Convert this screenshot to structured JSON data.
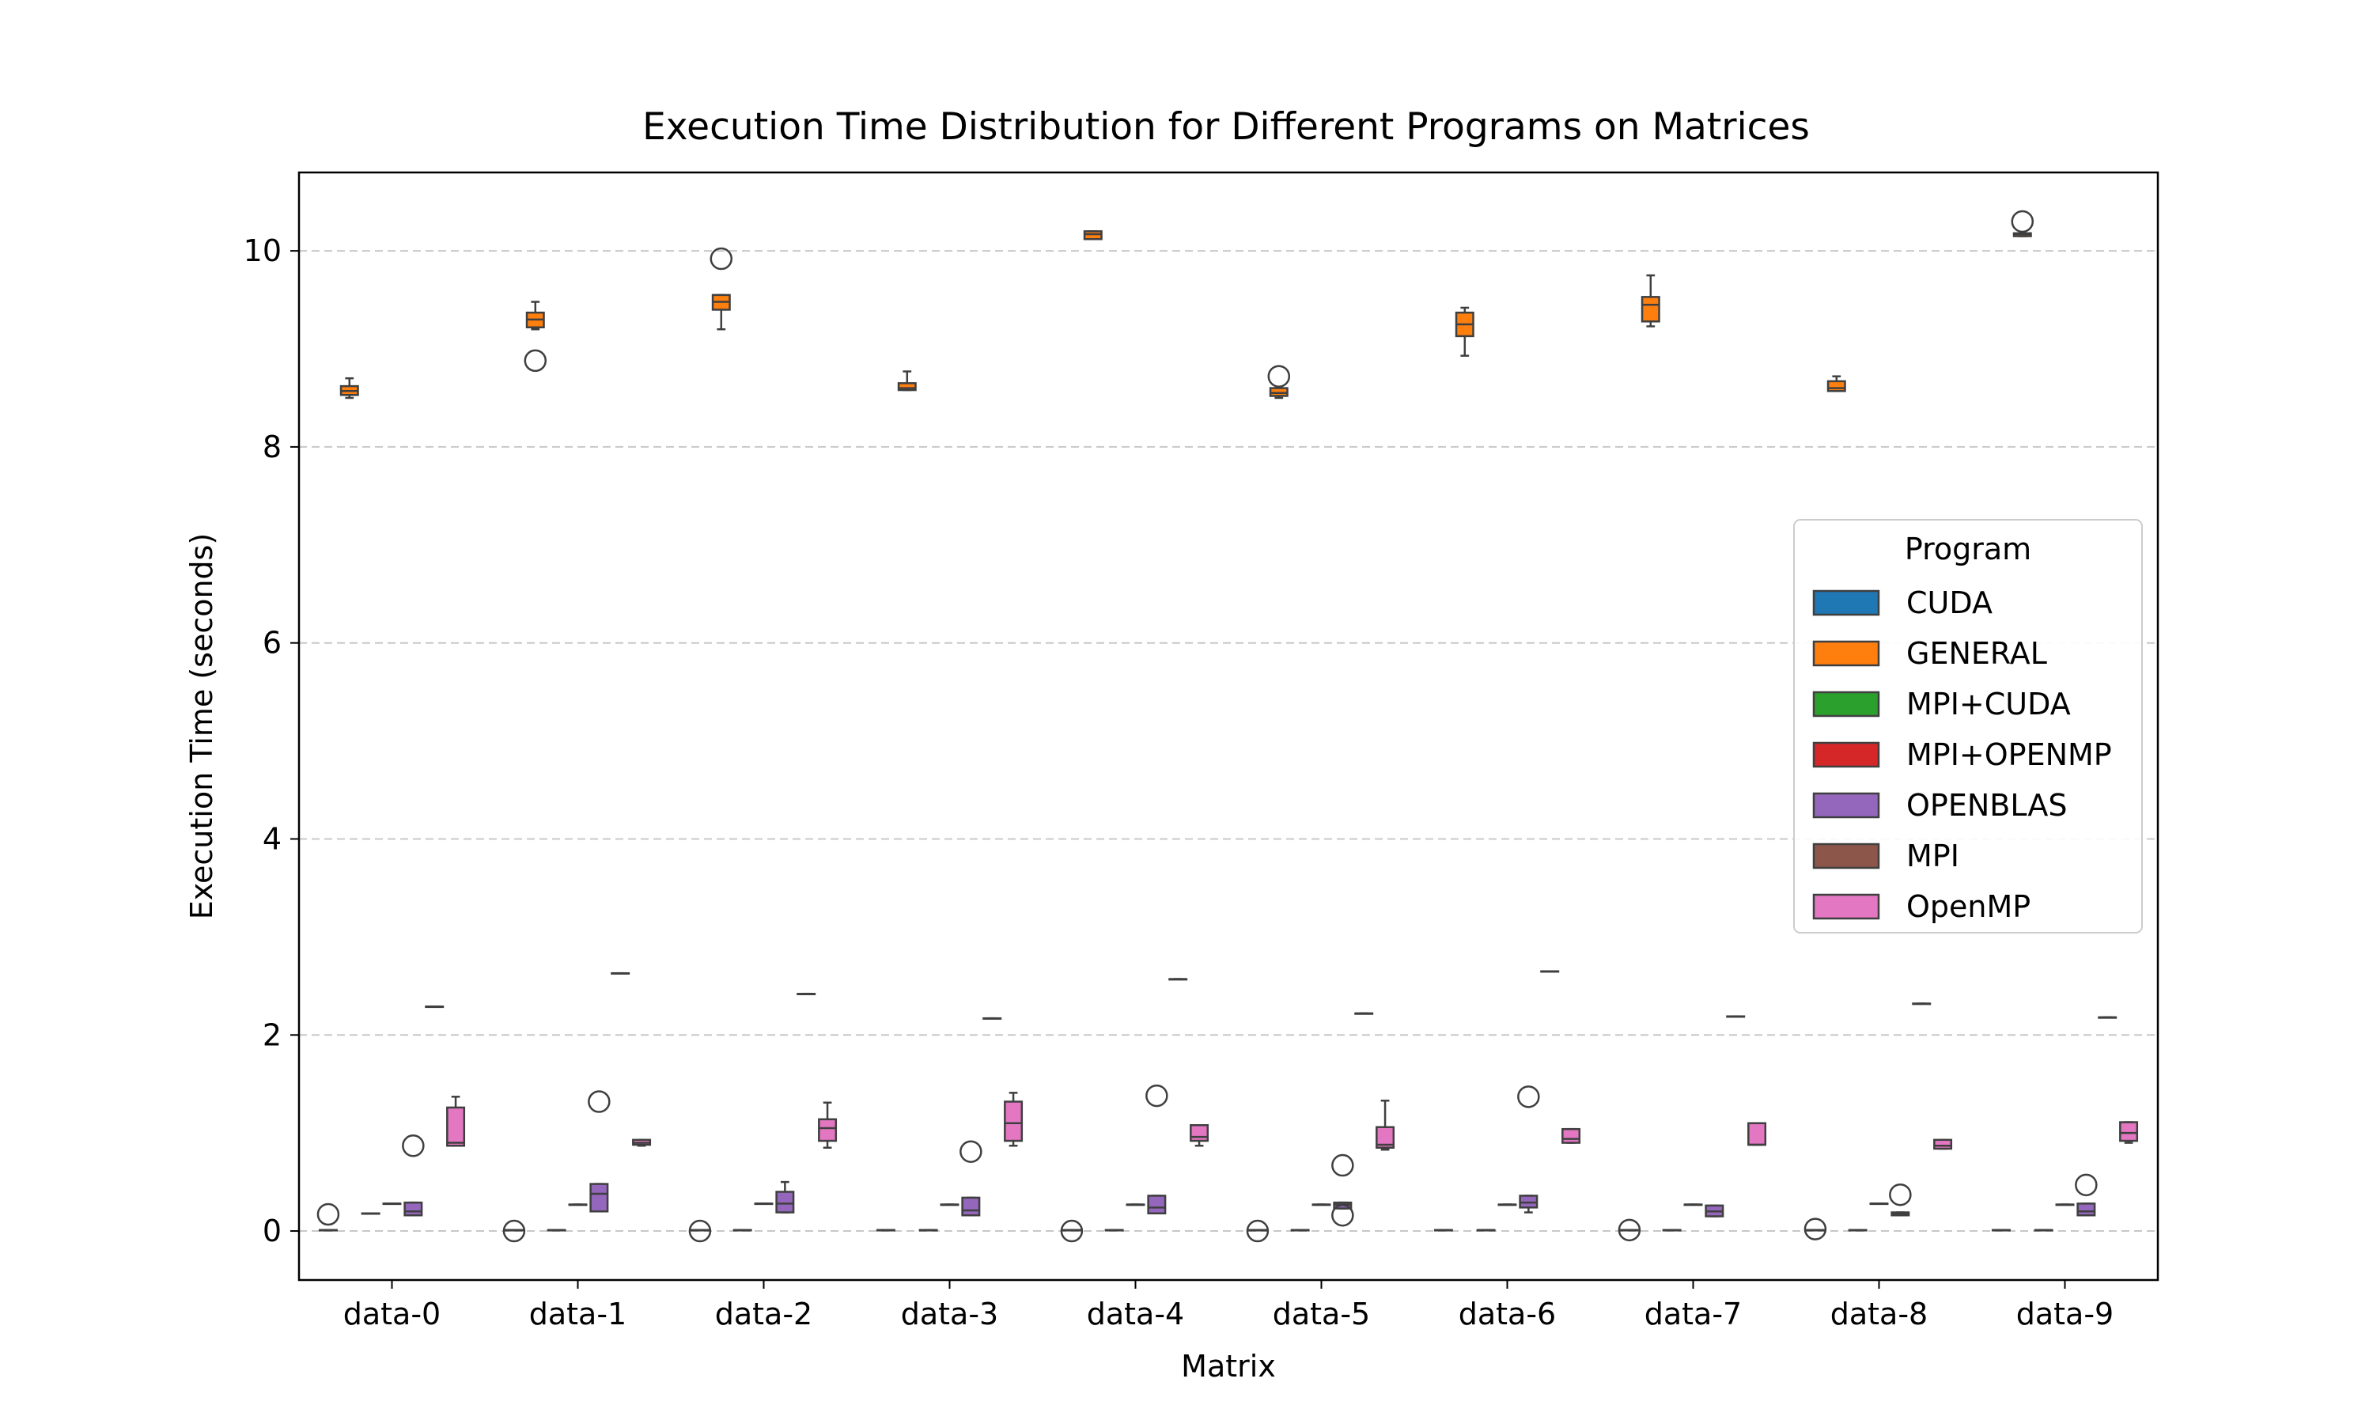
{
  "chart_data": {
    "type": "box",
    "title": "Execution Time Distribution for Different Programs on Matrices",
    "xlabel": "Matrix",
    "ylabel": "Execution Time (seconds)",
    "ylim": [
      -0.5,
      10.8
    ],
    "yticks": [
      0,
      2,
      4,
      6,
      8,
      10
    ],
    "grid": "y-dashed",
    "categories": [
      "data-0",
      "data-1",
      "data-2",
      "data-3",
      "data-4",
      "data-5",
      "data-6",
      "data-7",
      "data-8",
      "data-9"
    ],
    "legend": {
      "title": "Program",
      "placement": "center-right"
    },
    "series": [
      {
        "name": "CUDA",
        "color": "#1f77b4",
        "boxes": [
          {
            "whislo": 0.01,
            "q1": 0.01,
            "med": 0.01,
            "q3": 0.01,
            "whishi": 0.01,
            "fliers": [
              0.17
            ]
          },
          {
            "whislo": 0.01,
            "q1": 0.01,
            "med": 0.01,
            "q3": 0.01,
            "whishi": 0.01,
            "fliers": [
              0.0
            ]
          },
          {
            "whislo": 0.01,
            "q1": 0.01,
            "med": 0.01,
            "q3": 0.01,
            "whishi": 0.01,
            "fliers": [
              0.0
            ]
          },
          {
            "whislo": 0.01,
            "q1": 0.01,
            "med": 0.01,
            "q3": 0.01,
            "whishi": 0.01,
            "fliers": []
          },
          {
            "whislo": 0.01,
            "q1": 0.01,
            "med": 0.01,
            "q3": 0.01,
            "whishi": 0.01,
            "fliers": [
              0.0
            ]
          },
          {
            "whislo": 0.01,
            "q1": 0.01,
            "med": 0.01,
            "q3": 0.01,
            "whishi": 0.01,
            "fliers": [
              0.0
            ]
          },
          {
            "whislo": 0.01,
            "q1": 0.01,
            "med": 0.01,
            "q3": 0.01,
            "whishi": 0.01,
            "fliers": []
          },
          {
            "whislo": 0.01,
            "q1": 0.01,
            "med": 0.01,
            "q3": 0.01,
            "whishi": 0.01,
            "fliers": [
              0.01
            ]
          },
          {
            "whislo": 0.01,
            "q1": 0.01,
            "med": 0.01,
            "q3": 0.01,
            "whishi": 0.01,
            "fliers": [
              0.02
            ]
          },
          {
            "whislo": 0.01,
            "q1": 0.01,
            "med": 0.01,
            "q3": 0.01,
            "whishi": 0.01,
            "fliers": []
          }
        ]
      },
      {
        "name": "GENERAL",
        "color": "#ff7f0e",
        "boxes": [
          {
            "whislo": 8.5,
            "q1": 8.53,
            "med": 8.57,
            "q3": 8.62,
            "whishi": 8.7,
            "fliers": []
          },
          {
            "whislo": 9.2,
            "q1": 9.22,
            "med": 9.3,
            "q3": 9.37,
            "whishi": 9.48,
            "fliers": [
              8.88
            ]
          },
          {
            "whislo": 9.2,
            "q1": 9.4,
            "med": 9.48,
            "q3": 9.55,
            "whishi": 9.55,
            "fliers": [
              9.92
            ]
          },
          {
            "whislo": 8.58,
            "q1": 8.58,
            "med": 8.6,
            "q3": 8.65,
            "whishi": 8.77,
            "fliers": []
          },
          {
            "whislo": 10.12,
            "q1": 10.12,
            "med": 10.17,
            "q3": 10.2,
            "whishi": 10.2,
            "fliers": []
          },
          {
            "whislo": 8.5,
            "q1": 8.52,
            "med": 8.55,
            "q3": 8.6,
            "whishi": 8.6,
            "fliers": [
              8.72
            ]
          },
          {
            "whislo": 8.93,
            "q1": 9.13,
            "med": 9.25,
            "q3": 9.37,
            "whishi": 9.42,
            "fliers": []
          },
          {
            "whislo": 9.23,
            "q1": 9.28,
            "med": 9.45,
            "q3": 9.53,
            "whishi": 9.75,
            "fliers": []
          },
          {
            "whislo": 8.57,
            "q1": 8.57,
            "med": 8.6,
            "q3": 8.67,
            "whishi": 8.72,
            "fliers": []
          },
          {
            "whislo": 10.15,
            "q1": 10.15,
            "med": 10.17,
            "q3": 10.18,
            "whishi": 10.18,
            "fliers": [
              10.3
            ]
          }
        ]
      },
      {
        "name": "MPI+CUDA",
        "color": "#2ca02c",
        "boxes": [
          {
            "whislo": 0.18,
            "q1": 0.18,
            "med": 0.18,
            "q3": 0.18,
            "whishi": 0.18,
            "fliers": []
          },
          {
            "whislo": 0.01,
            "q1": 0.01,
            "med": 0.01,
            "q3": 0.01,
            "whishi": 0.01,
            "fliers": []
          },
          {
            "whislo": 0.01,
            "q1": 0.01,
            "med": 0.01,
            "q3": 0.01,
            "whishi": 0.01,
            "fliers": []
          },
          {
            "whislo": 0.01,
            "q1": 0.01,
            "med": 0.01,
            "q3": 0.01,
            "whishi": 0.01,
            "fliers": []
          },
          {
            "whislo": 0.01,
            "q1": 0.01,
            "med": 0.01,
            "q3": 0.01,
            "whishi": 0.01,
            "fliers": []
          },
          {
            "whislo": 0.01,
            "q1": 0.01,
            "med": 0.01,
            "q3": 0.01,
            "whishi": 0.01,
            "fliers": []
          },
          {
            "whislo": 0.01,
            "q1": 0.01,
            "med": 0.01,
            "q3": 0.01,
            "whishi": 0.01,
            "fliers": []
          },
          {
            "whislo": 0.01,
            "q1": 0.01,
            "med": 0.01,
            "q3": 0.01,
            "whishi": 0.01,
            "fliers": []
          },
          {
            "whislo": 0.01,
            "q1": 0.01,
            "med": 0.01,
            "q3": 0.01,
            "whishi": 0.01,
            "fliers": []
          },
          {
            "whislo": 0.01,
            "q1": 0.01,
            "med": 0.01,
            "q3": 0.01,
            "whishi": 0.01,
            "fliers": []
          }
        ]
      },
      {
        "name": "MPI+OPENMP",
        "color": "#d62728",
        "boxes": [
          {
            "whislo": 0.28,
            "q1": 0.28,
            "med": 0.28,
            "q3": 0.28,
            "whishi": 0.28,
            "fliers": []
          },
          {
            "whislo": 0.27,
            "q1": 0.27,
            "med": 0.27,
            "q3": 0.27,
            "whishi": 0.27,
            "fliers": []
          },
          {
            "whislo": 0.28,
            "q1": 0.28,
            "med": 0.28,
            "q3": 0.28,
            "whishi": 0.28,
            "fliers": []
          },
          {
            "whislo": 0.27,
            "q1": 0.27,
            "med": 0.27,
            "q3": 0.27,
            "whishi": 0.27,
            "fliers": []
          },
          {
            "whislo": 0.27,
            "q1": 0.27,
            "med": 0.27,
            "q3": 0.27,
            "whishi": 0.27,
            "fliers": []
          },
          {
            "whislo": 0.27,
            "q1": 0.27,
            "med": 0.27,
            "q3": 0.27,
            "whishi": 0.27,
            "fliers": []
          },
          {
            "whislo": 0.27,
            "q1": 0.27,
            "med": 0.27,
            "q3": 0.27,
            "whishi": 0.27,
            "fliers": []
          },
          {
            "whislo": 0.27,
            "q1": 0.27,
            "med": 0.27,
            "q3": 0.27,
            "whishi": 0.27,
            "fliers": []
          },
          {
            "whislo": 0.28,
            "q1": 0.28,
            "med": 0.28,
            "q3": 0.28,
            "whishi": 0.28,
            "fliers": []
          },
          {
            "whislo": 0.27,
            "q1": 0.27,
            "med": 0.27,
            "q3": 0.27,
            "whishi": 0.27,
            "fliers": []
          }
        ]
      },
      {
        "name": "OPENBLAS",
        "color": "#9467bd",
        "boxes": [
          {
            "whislo": 0.16,
            "q1": 0.16,
            "med": 0.2,
            "q3": 0.29,
            "whishi": 0.29,
            "fliers": [
              0.87
            ]
          },
          {
            "whislo": 0.2,
            "q1": 0.2,
            "med": 0.38,
            "q3": 0.48,
            "whishi": 0.48,
            "fliers": [
              1.32
            ]
          },
          {
            "whislo": 0.19,
            "q1": 0.19,
            "med": 0.28,
            "q3": 0.4,
            "whishi": 0.5,
            "fliers": []
          },
          {
            "whislo": 0.16,
            "q1": 0.16,
            "med": 0.21,
            "q3": 0.34,
            "whishi": 0.34,
            "fliers": [
              0.81
            ]
          },
          {
            "whislo": 0.18,
            "q1": 0.18,
            "med": 0.24,
            "q3": 0.36,
            "whishi": 0.36,
            "fliers": [
              1.38
            ]
          },
          {
            "whislo": 0.23,
            "q1": 0.23,
            "med": 0.27,
            "q3": 0.29,
            "whishi": 0.29,
            "fliers": [
              0.67,
              0.16
            ]
          },
          {
            "whislo": 0.19,
            "q1": 0.24,
            "med": 0.29,
            "q3": 0.36,
            "whishi": 0.36,
            "fliers": [
              1.37
            ]
          },
          {
            "whislo": 0.15,
            "q1": 0.15,
            "med": 0.2,
            "q3": 0.26,
            "whishi": 0.26,
            "fliers": []
          },
          {
            "whislo": 0.16,
            "q1": 0.16,
            "med": 0.18,
            "q3": 0.19,
            "whishi": 0.19,
            "fliers": [
              0.37
            ]
          },
          {
            "whislo": 0.16,
            "q1": 0.16,
            "med": 0.2,
            "q3": 0.28,
            "whishi": 0.28,
            "fliers": [
              0.47
            ]
          }
        ]
      },
      {
        "name": "MPI",
        "color": "#8c564b",
        "boxes": [
          {
            "whislo": 2.29,
            "q1": 2.29,
            "med": 2.29,
            "q3": 2.29,
            "whishi": 2.29,
            "fliers": []
          },
          {
            "whislo": 2.63,
            "q1": 2.63,
            "med": 2.63,
            "q3": 2.63,
            "whishi": 2.63,
            "fliers": []
          },
          {
            "whislo": 2.42,
            "q1": 2.42,
            "med": 2.42,
            "q3": 2.42,
            "whishi": 2.42,
            "fliers": []
          },
          {
            "whislo": 2.17,
            "q1": 2.17,
            "med": 2.17,
            "q3": 2.17,
            "whishi": 2.17,
            "fliers": []
          },
          {
            "whislo": 2.57,
            "q1": 2.57,
            "med": 2.57,
            "q3": 2.57,
            "whishi": 2.57,
            "fliers": []
          },
          {
            "whislo": 2.22,
            "q1": 2.22,
            "med": 2.22,
            "q3": 2.22,
            "whishi": 2.22,
            "fliers": []
          },
          {
            "whislo": 2.65,
            "q1": 2.65,
            "med": 2.65,
            "q3": 2.65,
            "whishi": 2.65,
            "fliers": []
          },
          {
            "whislo": 2.19,
            "q1": 2.19,
            "med": 2.19,
            "q3": 2.19,
            "whishi": 2.19,
            "fliers": []
          },
          {
            "whislo": 2.32,
            "q1": 2.32,
            "med": 2.32,
            "q3": 2.32,
            "whishi": 2.32,
            "fliers": []
          },
          {
            "whislo": 2.18,
            "q1": 2.18,
            "med": 2.18,
            "q3": 2.18,
            "whishi": 2.18,
            "fliers": []
          }
        ]
      },
      {
        "name": "OpenMP",
        "color": "#e377c2",
        "boxes": [
          {
            "whislo": 0.87,
            "q1": 0.87,
            "med": 0.9,
            "q3": 1.26,
            "whishi": 1.37,
            "fliers": []
          },
          {
            "whislo": 0.87,
            "q1": 0.88,
            "med": 0.9,
            "q3": 0.93,
            "whishi": 0.93,
            "fliers": []
          },
          {
            "whislo": 0.85,
            "q1": 0.92,
            "med": 1.05,
            "q3": 1.14,
            "whishi": 1.31,
            "fliers": []
          },
          {
            "whislo": 0.87,
            "q1": 0.92,
            "med": 1.1,
            "q3": 1.32,
            "whishi": 1.41,
            "fliers": []
          },
          {
            "whislo": 0.87,
            "q1": 0.92,
            "med": 0.96,
            "q3": 1.08,
            "whishi": 1.08,
            "fliers": []
          },
          {
            "whislo": 0.83,
            "q1": 0.85,
            "med": 0.88,
            "q3": 1.06,
            "whishi": 1.33,
            "fliers": []
          },
          {
            "whislo": 0.9,
            "q1": 0.9,
            "med": 0.94,
            "q3": 1.04,
            "whishi": 1.04,
            "fliers": []
          },
          {
            "whislo": 0.88,
            "q1": 0.88,
            "med": 0.88,
            "q3": 1.1,
            "whishi": 1.1,
            "fliers": []
          },
          {
            "whislo": 0.84,
            "q1": 0.84,
            "med": 0.87,
            "q3": 0.93,
            "whishi": 0.93,
            "fliers": []
          },
          {
            "whislo": 0.9,
            "q1": 0.92,
            "med": 1.0,
            "q3": 1.11,
            "whishi": 1.11,
            "fliers": []
          }
        ]
      }
    ]
  }
}
